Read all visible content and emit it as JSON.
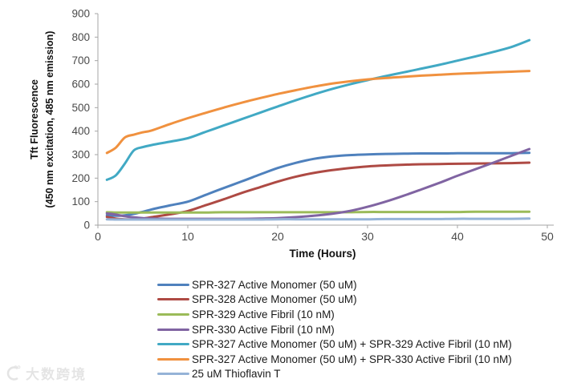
{
  "watermark": {
    "text": "大数跨境"
  },
  "chart_data": {
    "type": "line",
    "title": "",
    "xlabel": "Time (Hours)",
    "ylabel_line1": "Tft Fluorescence",
    "ylabel_line2": "(450 nm excitation, 485 nm emission)",
    "xlim": [
      0,
      50
    ],
    "ylim": [
      0,
      900
    ],
    "x_ticks": [
      0,
      10,
      20,
      30,
      40,
      50
    ],
    "y_ticks": [
      0,
      100,
      200,
      300,
      400,
      500,
      600,
      700,
      800,
      900
    ],
    "grid": false,
    "legend_position": "bottom-left",
    "x": [
      1,
      2,
      3,
      4,
      5,
      6,
      8,
      10,
      12,
      14,
      16,
      18,
      20,
      22,
      24,
      26,
      28,
      30,
      32,
      34,
      36,
      38,
      40,
      42,
      44,
      46,
      48
    ],
    "series": [
      {
        "name": "SPR-327 Active Monomer (50 uM)",
        "color": "#4f81bd",
        "values": [
          42,
          40,
          42,
          48,
          57,
          67,
          84,
          100,
          129,
          158,
          186,
          215,
          243,
          265,
          282,
          292,
          298,
          301,
          303,
          304,
          305,
          305,
          306,
          306,
          306,
          306,
          308
        ]
      },
      {
        "name": "SPR-328 Active Monomer (50 uM)",
        "color": "#ae4a44",
        "values": [
          35,
          28,
          25,
          25,
          28,
          34,
          46,
          60,
          85,
          110,
          137,
          161,
          185,
          206,
          222,
          234,
          243,
          250,
          254,
          257,
          259,
          260,
          261,
          262,
          263,
          264,
          266
        ]
      },
      {
        "name": "SPR-329 Active Fibril (10 nM)",
        "color": "#9bbb59",
        "values": [
          55,
          54,
          54,
          54,
          54,
          54,
          54,
          54,
          54,
          55,
          55,
          55,
          55,
          55,
          55,
          55,
          55,
          56,
          56,
          56,
          56,
          56,
          56,
          57,
          57,
          57,
          57
        ]
      },
      {
        "name": "SPR-330 Active Fibril (10 nM)",
        "color": "#8064a2",
        "values": [
          50,
          45,
          38,
          33,
          30,
          28,
          27,
          27,
          27,
          27,
          27,
          28,
          30,
          34,
          40,
          48,
          60,
          78,
          100,
          125,
          152,
          180,
          210,
          238,
          266,
          295,
          324
        ]
      },
      {
        "name": "SPR-327 Active Monomer (50 uM) + SPR-329 Active Fibril (10 nM)",
        "color": "#41a9c4",
        "values": [
          193,
          212,
          262,
          318,
          332,
          341,
          355,
          370,
          397,
          424,
          451,
          478,
          505,
          531,
          556,
          579,
          599,
          617,
          634,
          650,
          666,
          682,
          700,
          718,
          737,
          758,
          787
        ]
      },
      {
        "name": "SPR-327 Active Monomer (50 uM) + SPR-330 Active Fibril (10 nM)",
        "color": "#f0913f",
        "values": [
          307,
          330,
          373,
          385,
          395,
          403,
          430,
          455,
          478,
          500,
          521,
          540,
          558,
          574,
          589,
          602,
          612,
          620,
          626,
          631,
          636,
          640,
          644,
          647,
          650,
          653,
          656
        ]
      },
      {
        "name": "25 uM Thioflavin T",
        "color": "#95b3d7",
        "values": [
          25,
          24,
          24,
          24,
          24,
          24,
          24,
          24,
          24,
          24,
          24,
          24,
          25,
          25,
          25,
          25,
          25,
          25,
          26,
          26,
          26,
          26,
          27,
          27,
          27,
          27,
          28
        ]
      }
    ]
  }
}
